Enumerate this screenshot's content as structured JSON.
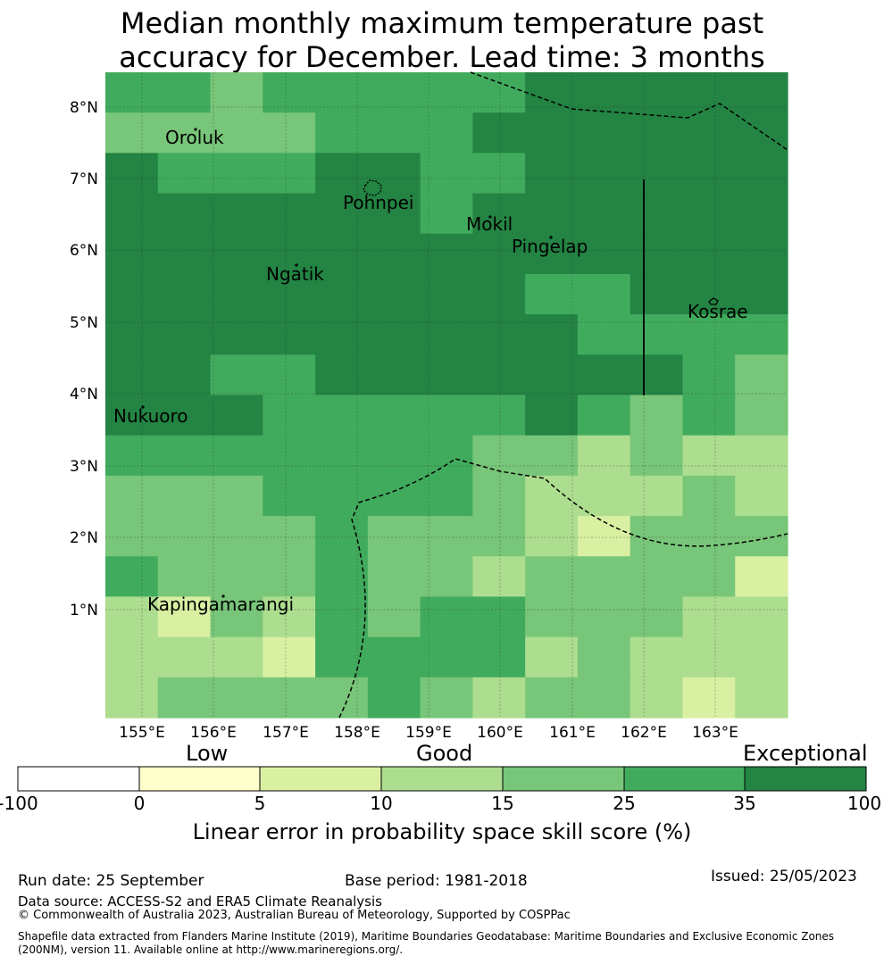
{
  "title_line1": "Median monthly maximum temperature past",
  "title_line2": "accuracy for December. Lead time: 3 months",
  "map": {
    "lon_labels": [
      "155°E",
      "156°E",
      "157°E",
      "158°E",
      "159°E",
      "160°E",
      "161°E",
      "162°E",
      "163°E"
    ],
    "lat_labels": [
      "8°N",
      "7°N",
      "6°N",
      "5°N",
      "4°N",
      "3°N",
      "2°N",
      "1°N"
    ],
    "places": [
      "Oroluk",
      "Pohnpei",
      "Mokil",
      "Pingelap",
      "Ngatik",
      "Kosrae",
      "Nukuoro",
      "Kapingamarangi"
    ],
    "skill_grid": [
      [
        25,
        25,
        15,
        25,
        25,
        25,
        25,
        25,
        35,
        35,
        35,
        35,
        35
      ],
      [
        15,
        15,
        15,
        15,
        25,
        25,
        25,
        35,
        35,
        35,
        35,
        35,
        35
      ],
      [
        35,
        25,
        25,
        25,
        35,
        35,
        25,
        25,
        35,
        35,
        35,
        35,
        35
      ],
      [
        35,
        35,
        35,
        35,
        35,
        35,
        25,
        35,
        35,
        35,
        35,
        35,
        35
      ],
      [
        35,
        35,
        35,
        35,
        35,
        35,
        35,
        35,
        35,
        35,
        35,
        35,
        35
      ],
      [
        35,
        35,
        35,
        35,
        35,
        35,
        35,
        35,
        25,
        25,
        35,
        35,
        35
      ],
      [
        35,
        35,
        35,
        35,
        35,
        35,
        35,
        35,
        35,
        25,
        25,
        25,
        25
      ],
      [
        35,
        35,
        25,
        25,
        35,
        35,
        35,
        35,
        35,
        35,
        35,
        25,
        15
      ],
      [
        35,
        35,
        35,
        25,
        25,
        25,
        25,
        25,
        35,
        25,
        15,
        25,
        15
      ],
      [
        25,
        25,
        25,
        25,
        25,
        25,
        25,
        15,
        15,
        10,
        15,
        10,
        10
      ],
      [
        15,
        15,
        15,
        25,
        25,
        25,
        25,
        15,
        10,
        10,
        10,
        15,
        10
      ],
      [
        15,
        15,
        15,
        15,
        25,
        15,
        15,
        15,
        10,
        5,
        15,
        15,
        15
      ],
      [
        25,
        15,
        15,
        15,
        25,
        15,
        15,
        10,
        15,
        15,
        15,
        15,
        5
      ],
      [
        10,
        5,
        15,
        10,
        25,
        15,
        25,
        25,
        15,
        15,
        15,
        10,
        10
      ],
      [
        10,
        10,
        10,
        5,
        25,
        25,
        25,
        25,
        10,
        15,
        10,
        10,
        10
      ],
      [
        10,
        15,
        15,
        15,
        15,
        25,
        15,
        10,
        15,
        15,
        10,
        5,
        10
      ]
    ]
  },
  "colorbar": {
    "category_labels": [
      "Low",
      "Good",
      "Exceptional"
    ],
    "ticks": [
      "-100",
      "0",
      "5",
      "10",
      "15",
      "25",
      "35",
      "100"
    ],
    "colors": [
      "#ffffff",
      "#ffffcc",
      "#d9f0a3",
      "#addd8e",
      "#78c679",
      "#41ab5d",
      "#238443"
    ],
    "title": "Linear error in probability space skill score (%)"
  },
  "footer": {
    "run_date": "Run date: 25 September",
    "base_period": "Base period: 1981-2018",
    "issued": "Issued: 25/05/2023",
    "data_source": "Data source: ACCESS-S2 and ERA5 Climate Reanalysis",
    "copyright": "© Commonwealth of Australia 2023, Australian Bureau of Meteorology, Supported by COSPPac",
    "shapefile_line1": "Shapefile data extracted from Flanders Marine Institute (2019), Maritime Boundaries Geodatabase: Maritime Boundaries and Exclusive Economic Zones",
    "shapefile_line2": "(200NM), version 11. Available online at http://www.marineregions.org/."
  }
}
